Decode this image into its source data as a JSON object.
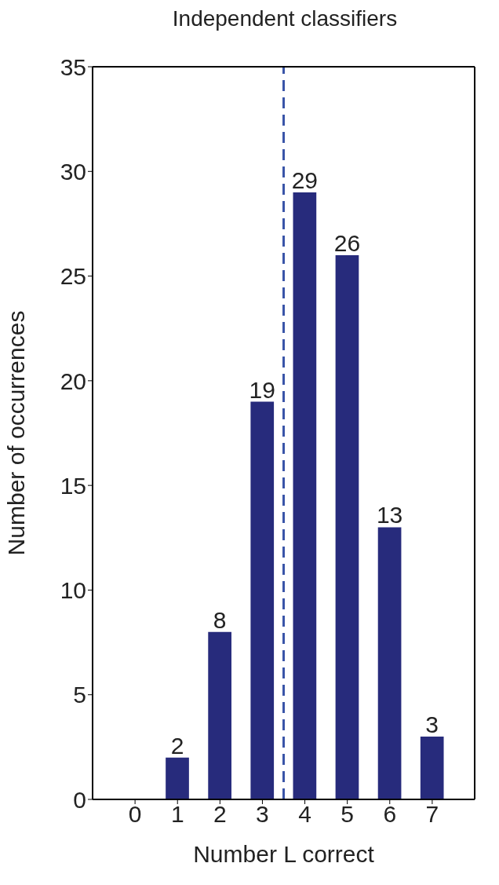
{
  "chart_data": {
    "type": "bar",
    "title": "Independent classifiers",
    "xlabel": "Number L correct",
    "ylabel": "Number of occurrences",
    "x": [
      0,
      1,
      2,
      3,
      4,
      5,
      6,
      7
    ],
    "values": [
      0,
      2,
      8,
      19,
      29,
      26,
      13,
      3
    ],
    "value_labels": [
      null,
      "2",
      "8",
      "19",
      "29",
      "26",
      "13",
      "3"
    ],
    "color": "#272b7c",
    "xlim": [
      -1,
      8
    ],
    "xticks": [
      0,
      1,
      2,
      3,
      4,
      5,
      6,
      7
    ],
    "ylim": [
      0,
      35
    ],
    "yticks": [
      0,
      5,
      10,
      15,
      20,
      25,
      30,
      35
    ],
    "ref_lines": [
      {
        "axis": "x",
        "value": 3.5,
        "color": "#3a55a8",
        "line_style": "dashed"
      }
    ]
  }
}
